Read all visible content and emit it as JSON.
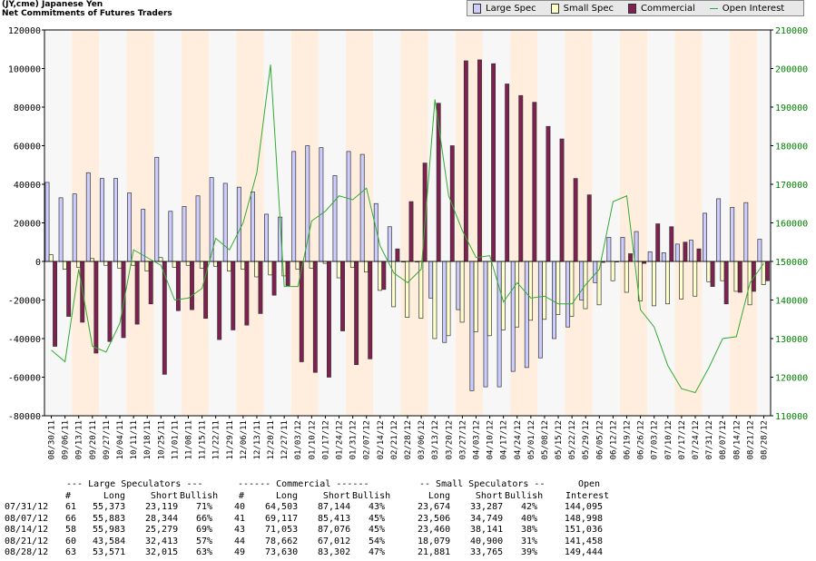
{
  "header": {
    "line1": "(JY,cme) Japanese Yen",
    "line2": "Net Commitments of Futures Traders"
  },
  "legend": [
    {
      "label": "Large Spec",
      "color": "#ccccff",
      "kind": "bar"
    },
    {
      "label": "Small Spec",
      "color": "#ffffcc",
      "kind": "bar"
    },
    {
      "label": "Commercial",
      "color": "#802050",
      "kind": "bar"
    },
    {
      "label": "Open Interest",
      "color": "#33aa33",
      "kind": "line"
    }
  ],
  "colors": {
    "large_spec": "#ccccff",
    "small_spec": "#ffffcc",
    "commercial": "#802050",
    "open_interest": "#33aa33",
    "band_a": "#ffeedd",
    "band_b": "#f7f7f7",
    "left_axis_text": "#000000",
    "right_axis_text": "#008000"
  },
  "chart_data": {
    "type": "bar",
    "grid": false,
    "legend_position": "top-right",
    "ylim": [
      -80000,
      120000
    ],
    "y2lim": [
      110000,
      210000
    ],
    "yticks": [
      "120000",
      "100000",
      "80000",
      "60000",
      "40000",
      "20000",
      "0",
      "-20000",
      "-40000",
      "-60000",
      "-80000"
    ],
    "y2ticks": [
      "210000",
      "200000",
      "190000",
      "180000",
      "170000",
      "160000",
      "150000",
      "140000",
      "130000",
      "120000",
      "110000"
    ],
    "categories": [
      "08/30/11",
      "09/06/11",
      "09/13/11",
      "09/20/11",
      "09/27/11",
      "10/04/11",
      "10/11/11",
      "10/18/11",
      "10/25/11",
      "11/01/11",
      "11/08/11",
      "11/15/11",
      "11/22/11",
      "11/29/11",
      "12/06/11",
      "12/13/11",
      "12/20/11",
      "12/27/11",
      "01/03/12",
      "01/10/12",
      "01/17/12",
      "01/24/12",
      "01/31/12",
      "02/07/12",
      "02/14/12",
      "02/21/12",
      "02/28/12",
      "03/06/12",
      "03/13/12",
      "03/20/12",
      "03/27/12",
      "04/03/12",
      "04/10/12",
      "04/17/12",
      "04/24/12",
      "05/01/12",
      "05/08/12",
      "05/15/12",
      "05/22/12",
      "05/29/12",
      "06/05/12",
      "06/12/12",
      "06/19/12",
      "06/26/12",
      "07/03/12",
      "07/10/12",
      "07/17/12",
      "07/24/12",
      "07/31/12",
      "08/07/12",
      "08/14/12",
      "08/21/12",
      "08/28/12"
    ],
    "series": [
      {
        "name": "Large Spec",
        "values": [
          41000,
          33000,
          35000,
          46000,
          43000,
          43000,
          35500,
          27000,
          54000,
          26000,
          28500,
          34000,
          43500,
          40500,
          38500,
          36000,
          24500,
          23000,
          57000,
          60000,
          59000,
          44500,
          57000,
          55500,
          30000,
          18000,
          0,
          0,
          -19000,
          -42000,
          -25000,
          -67000,
          -65000,
          -65000,
          -57000,
          -55000,
          -50000,
          -40000,
          -34000,
          -20000,
          -11000,
          12500,
          12500,
          15500,
          5000,
          4500,
          9000,
          11000,
          25000,
          32500,
          28000,
          30500,
          11500
        ]
      },
      {
        "name": "Small Spec",
        "values": [
          3500,
          -4000,
          -3000,
          1500,
          -2000,
          -3500,
          -2000,
          -5000,
          2000,
          -3000,
          -2000,
          -3500,
          -2500,
          -5000,
          -4000,
          -8000,
          -7000,
          -7500,
          -4000,
          -3500,
          -1000,
          -8500,
          -3000,
          -5500,
          -15000,
          -23500,
          -29000,
          -29500,
          -40000,
          -38500,
          -31500,
          -36500,
          -38500,
          -35500,
          -34000,
          -30500,
          -30000,
          -27500,
          -28500,
          -24500,
          -22500,
          -10000,
          -16000,
          -20500,
          -23000,
          -22000,
          -19500,
          -18000,
          -10500,
          -10000,
          -15500,
          -22500,
          -12000
        ]
      },
      {
        "name": "Commercial",
        "values": [
          -44000,
          -28500,
          -31500,
          -47500,
          -41500,
          -39500,
          -32500,
          -22000,
          -58500,
          -25500,
          -25000,
          -29500,
          -40500,
          -35500,
          -33000,
          -27000,
          -17500,
          -12500,
          -52000,
          -57500,
          -60000,
          -36000,
          -53500,
          -50500,
          -14500,
          6500,
          31000,
          51000,
          82000,
          60000,
          104000,
          104500,
          102500,
          92000,
          86000,
          82500,
          70000,
          63500,
          43000,
          34500,
          -500,
          0,
          4000,
          -1000,
          19500,
          18000,
          10000,
          6500,
          -13000,
          -22000,
          -16000,
          -15500,
          -10000
        ]
      },
      {
        "name": "Open Interest",
        "axis": "right",
        "values": [
          127000,
          124000,
          148000,
          128000,
          126500,
          134000,
          153000,
          151000,
          149000,
          140000,
          140500,
          143000,
          156000,
          153000,
          160000,
          173000,
          201000,
          143500,
          143500,
          160500,
          163000,
          167000,
          166000,
          169000,
          154000,
          147000,
          144500,
          148000,
          192000,
          167000,
          158000,
          151000,
          151500,
          139500,
          144500,
          140500,
          141000,
          139000,
          139000,
          144000,
          148000,
          165500,
          167000,
          137500,
          133000,
          123000,
          117000,
          116000,
          122500,
          130000,
          130500,
          144500,
          149500
        ]
      }
    ]
  },
  "table": {
    "header1": {
      "large": "--- Large Speculators ---",
      "commercial": "------ Commercial ------",
      "small": "-- Small Speculators --",
      "open": "Open"
    },
    "header2": {
      "n1": "#",
      "long1": "Long",
      "short1": "Short",
      "bull1": "Bullish",
      "n2": "#",
      "long2": "Long",
      "short2": "Short",
      "bull2": "Bullish",
      "long3": "Long",
      "short3": "Short",
      "bull3": "Bullish",
      "oi": "Interest"
    },
    "rows": [
      {
        "date": "07/31/12",
        "n1": "61",
        "long1": "55,373",
        "short1": "23,119",
        "bull1": "71%",
        "n2": "40",
        "long2": "64,503",
        "short2": "87,144",
        "bull2": "43%",
        "long3": "23,674",
        "short3": "33,287",
        "bull3": "42%",
        "oi": "144,095"
      },
      {
        "date": "08/07/12",
        "n1": "66",
        "long1": "55,883",
        "short1": "28,344",
        "bull1": "66%",
        "n2": "41",
        "long2": "69,117",
        "short2": "85,413",
        "bull2": "45%",
        "long3": "23,506",
        "short3": "34,749",
        "bull3": "40%",
        "oi": "148,998"
      },
      {
        "date": "08/14/12",
        "n1": "58",
        "long1": "55,983",
        "short1": "25,279",
        "bull1": "69%",
        "n2": "43",
        "long2": "71,053",
        "short2": "87,076",
        "bull2": "45%",
        "long3": "23,460",
        "short3": "38,141",
        "bull3": "38%",
        "oi": "151,036"
      },
      {
        "date": "08/21/12",
        "n1": "60",
        "long1": "43,584",
        "short1": "32,413",
        "bull1": "57%",
        "n2": "44",
        "long2": "78,662",
        "short2": "67,012",
        "bull2": "54%",
        "long3": "18,079",
        "short3": "40,900",
        "bull3": "31%",
        "oi": "141,458"
      },
      {
        "date": "08/28/12",
        "n1": "63",
        "long1": "53,571",
        "short1": "32,015",
        "bull1": "63%",
        "n2": "49",
        "long2": "73,630",
        "short2": "83,302",
        "bull2": "47%",
        "long3": "21,881",
        "short3": "33,765",
        "bull3": "39%",
        "oi": "149,444"
      }
    ]
  }
}
